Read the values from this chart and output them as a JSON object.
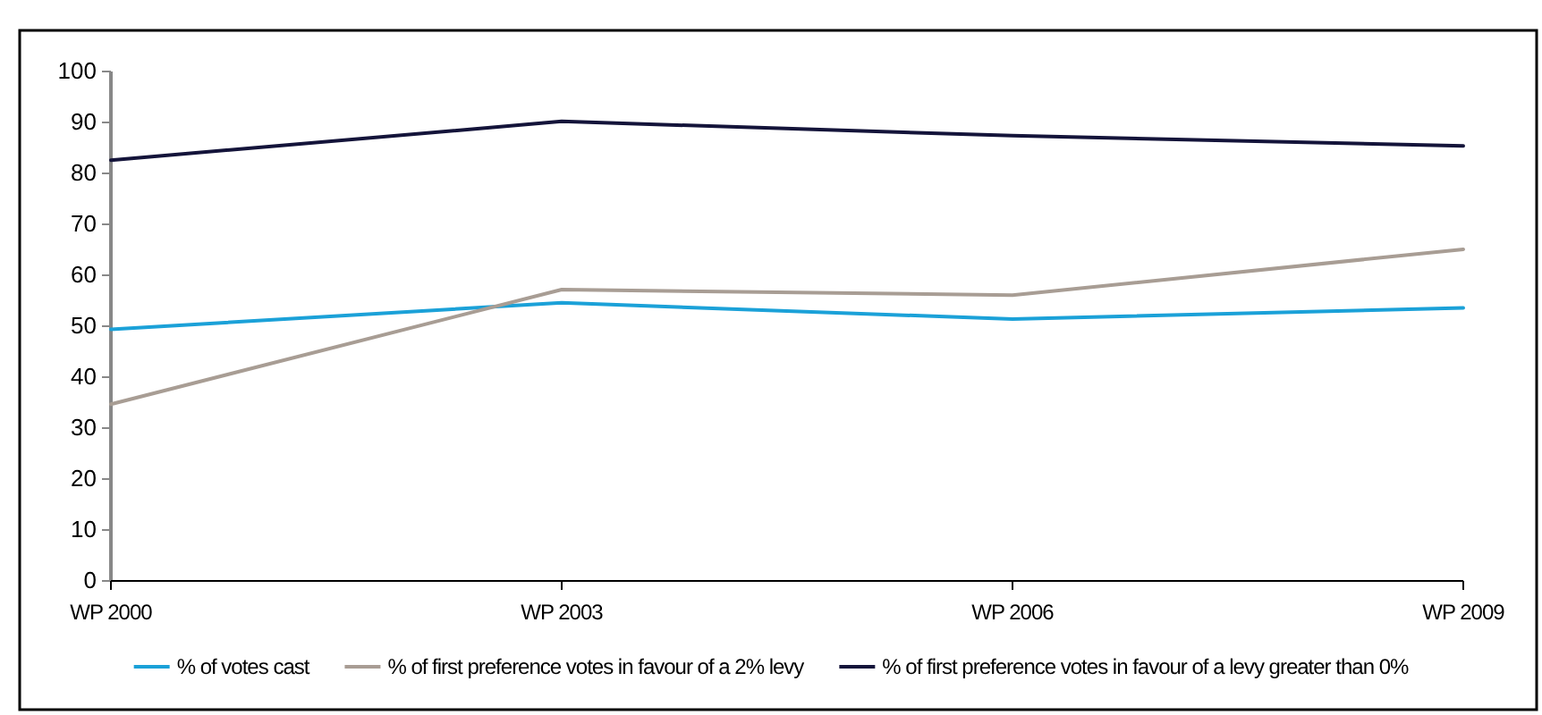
{
  "chart_data": {
    "type": "line",
    "categories": [
      "WP 2000",
      "WP 2003",
      "WP 2006",
      "WP 2009"
    ],
    "series": [
      {
        "name": "% of votes cast",
        "color": "#1ba1d8",
        "values": [
          49.4,
          54.6,
          51.4,
          53.6
        ]
      },
      {
        "name": "% of first preference votes in favour of a 2% levy",
        "color": "#a89d94",
        "values": [
          34.7,
          57.2,
          56.1,
          65.1
        ]
      },
      {
        "name": "% of first preference votes in favour of a levy greater than 0%",
        "color": "#14143a",
        "values": [
          82.6,
          90.2,
          87.4,
          85.4
        ]
      }
    ],
    "ylim": [
      0,
      100
    ],
    "yticks": [
      0,
      10,
      20,
      30,
      40,
      50,
      60,
      70,
      80,
      90,
      100
    ],
    "grid": false,
    "legend": "bottom",
    "marker": "none",
    "line_style": "solid"
  }
}
